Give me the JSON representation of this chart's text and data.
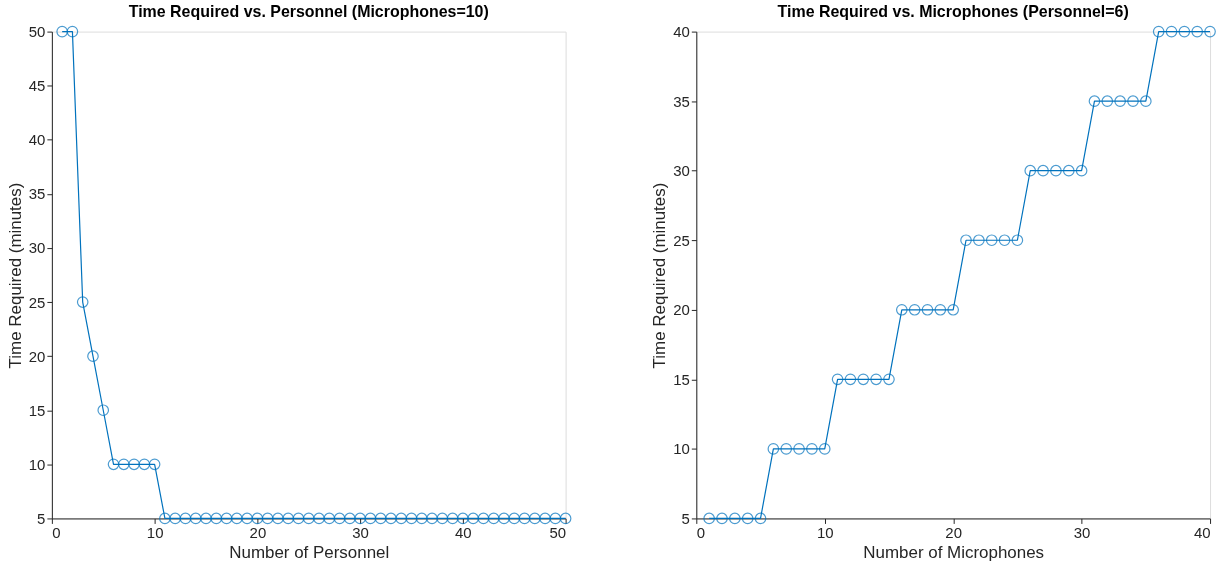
{
  "chart_data": [
    {
      "type": "line",
      "title": "Time Required vs. Personnel (Microphones=10)",
      "xlabel": "Number of Personnel",
      "ylabel": "Time Required (minutes)",
      "x": [
        1,
        2,
        3,
        4,
        5,
        6,
        7,
        8,
        9,
        10,
        11,
        12,
        13,
        14,
        15,
        16,
        17,
        18,
        19,
        20,
        21,
        22,
        23,
        24,
        25,
        26,
        27,
        28,
        29,
        30,
        31,
        32,
        33,
        34,
        35,
        36,
        37,
        38,
        39,
        40,
        41,
        42,
        43,
        44,
        45,
        46,
        47,
        48,
        49,
        50
      ],
      "series": [
        {
          "color": "#0072bd",
          "values": [
            50,
            50,
            25,
            20,
            15,
            10,
            10,
            10,
            10,
            10,
            5,
            5,
            5,
            5,
            5,
            5,
            5,
            5,
            5,
            5,
            5,
            5,
            5,
            5,
            5,
            5,
            5,
            5,
            5,
            5,
            5,
            5,
            5,
            5,
            5,
            5,
            5,
            5,
            5,
            5,
            5,
            5,
            5,
            5,
            5,
            5,
            5,
            5,
            5,
            5
          ]
        }
      ],
      "xlim": [
        0,
        50
      ],
      "xticks": [
        0,
        10,
        20,
        30,
        40,
        50
      ],
      "ylim": [
        5,
        50
      ],
      "yticks": [
        5,
        10,
        15,
        20,
        25,
        30,
        35,
        40,
        45,
        50
      ],
      "grid": false,
      "marker": "circle",
      "line_style": "solid"
    },
    {
      "type": "line",
      "title": "Time Required vs. Microphones (Personnel=6)",
      "xlabel": "Number of Microphones",
      "ylabel": "Time Required (minutes)",
      "x": [
        1,
        2,
        3,
        4,
        5,
        6,
        7,
        8,
        9,
        10,
        11,
        12,
        13,
        14,
        15,
        16,
        17,
        18,
        19,
        20,
        21,
        22,
        23,
        24,
        25,
        26,
        27,
        28,
        29,
        30,
        31,
        32,
        33,
        34,
        35,
        36,
        37,
        38,
        39,
        40
      ],
      "series": [
        {
          "color": "#0072bd",
          "values": [
            5,
            5,
            5,
            5,
            5,
            10,
            10,
            10,
            10,
            10,
            15,
            15,
            15,
            15,
            15,
            20,
            20,
            20,
            20,
            20,
            25,
            25,
            25,
            25,
            25,
            30,
            30,
            30,
            30,
            30,
            35,
            35,
            35,
            35,
            35,
            40,
            40,
            40,
            40,
            40
          ]
        }
      ],
      "xlim": [
        0,
        40
      ],
      "xticks": [
        0,
        10,
        20,
        30,
        40
      ],
      "ylim": [
        5,
        40
      ],
      "yticks": [
        5,
        10,
        15,
        20,
        25,
        30,
        35,
        40
      ],
      "grid": false,
      "marker": "circle",
      "line_style": "solid"
    }
  ]
}
